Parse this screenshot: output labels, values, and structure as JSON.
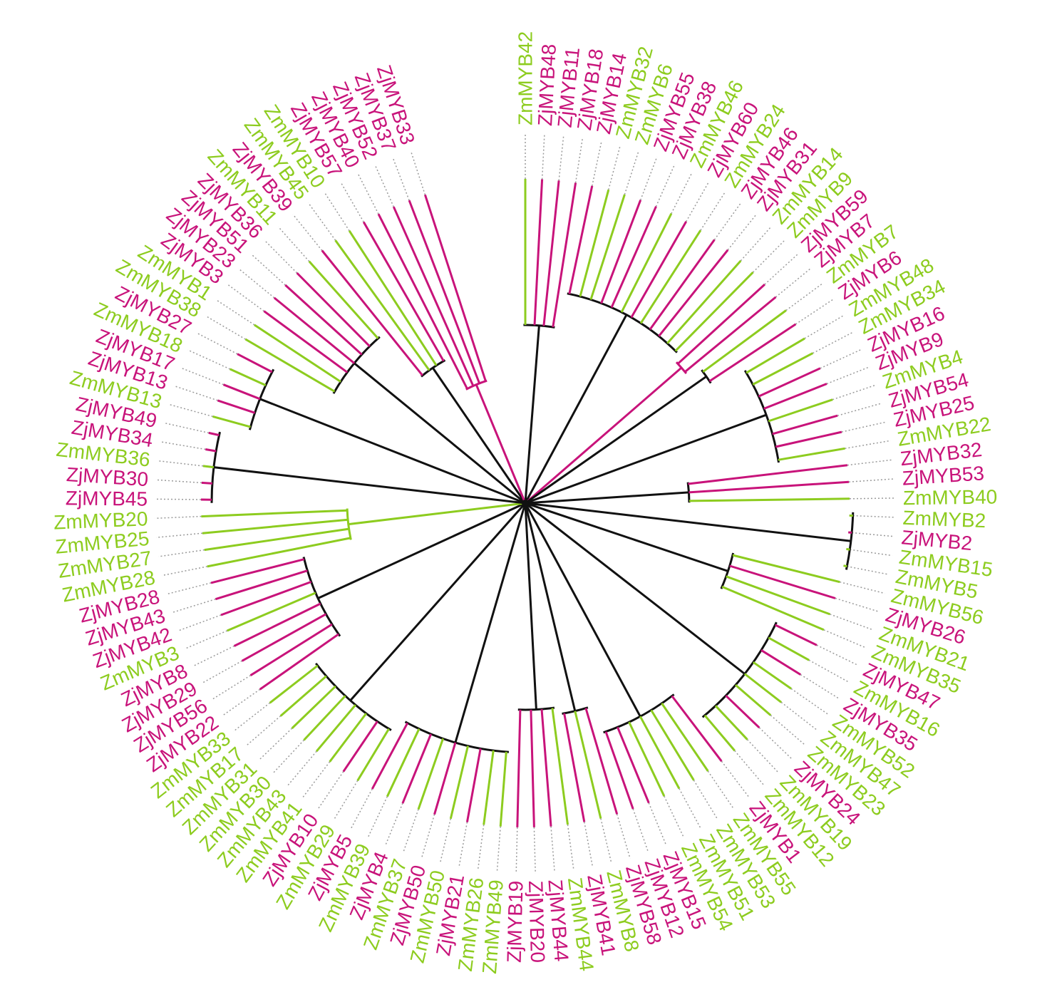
{
  "colors": {
    "zm": "#8dcc1f",
    "zj": "#c8137a",
    "mixed": "#111111",
    "dotted": "#9a9a9a"
  },
  "tree": {
    "layout": "circular",
    "gap_between": [
      "ZmMYB13",
      "ZjMYB49"
    ],
    "leaves_clockwise_from_top": [
      {
        "label": "ZmMYB42",
        "species": "zm",
        "clade": "e"
      },
      {
        "label": "ZjMYB48",
        "species": "zj",
        "clade": "e"
      },
      {
        "label": "ZjMYB11",
        "species": "zj",
        "clade": "e"
      },
      {
        "label": "ZjMYB18",
        "species": "zj",
        "clade": "e"
      },
      {
        "label": "ZjMYB14",
        "species": "zj",
        "clade": "f"
      },
      {
        "label": "ZmMYB32",
        "species": "zm",
        "clade": "f"
      },
      {
        "label": "ZmMYB6",
        "species": "zm",
        "clade": "f"
      },
      {
        "label": "ZjMYB55",
        "species": "zj",
        "clade": "f"
      },
      {
        "label": "ZjMYB38",
        "species": "zj",
        "clade": "f"
      },
      {
        "label": "ZmMYB46",
        "species": "zm",
        "clade": "f"
      },
      {
        "label": "ZjMYB60",
        "species": "zj",
        "clade": "f"
      },
      {
        "label": "ZmMYB24",
        "species": "zm",
        "clade": "f"
      },
      {
        "label": "ZjMYB46",
        "species": "zj",
        "clade": "f"
      },
      {
        "label": "ZjMYB31",
        "species": "zj",
        "clade": "f"
      },
      {
        "label": "ZmMYB14",
        "species": "zm",
        "clade": "f"
      },
      {
        "label": "ZmMYB9",
        "species": "zm",
        "clade": "f"
      },
      {
        "label": "ZjMYB59",
        "species": "zj",
        "clade": "g"
      },
      {
        "label": "ZjMYB7",
        "species": "zj",
        "clade": "g"
      },
      {
        "label": "ZmMYB7",
        "species": "zm",
        "clade": "h"
      },
      {
        "label": "ZjMYB6",
        "species": "zj",
        "clade": "h"
      },
      {
        "label": "ZmMYB48",
        "species": "zm",
        "clade": "i"
      },
      {
        "label": "ZmMYB34",
        "species": "zm",
        "clade": "i"
      },
      {
        "label": "ZjMYB16",
        "species": "zj",
        "clade": "i"
      },
      {
        "label": "ZjMYB9",
        "species": "zj",
        "clade": "i"
      },
      {
        "label": "ZmMYB4",
        "species": "zm",
        "clade": "i"
      },
      {
        "label": "ZjMYB54",
        "species": "zj",
        "clade": "i"
      },
      {
        "label": "ZjMYB25",
        "species": "zj",
        "clade": "i"
      },
      {
        "label": "ZmMYB22",
        "species": "zm",
        "clade": "i"
      },
      {
        "label": "ZjMYB32",
        "species": "zj",
        "clade": "j"
      },
      {
        "label": "ZjMYB53",
        "species": "zj",
        "clade": "j"
      },
      {
        "label": "ZmMYB40",
        "species": "zm",
        "clade": "j"
      },
      {
        "label": "ZmMYB2",
        "species": "zm",
        "clade": "k"
      },
      {
        "label": "ZjMYB2",
        "species": "zj",
        "clade": "k"
      },
      {
        "label": "ZmMYB15",
        "species": "zm",
        "clade": "k"
      },
      {
        "label": "ZmMYB5",
        "species": "zm",
        "clade": "k"
      },
      {
        "label": "ZmMYB56",
        "species": "zm",
        "clade": "l"
      },
      {
        "label": "ZjMYB26",
        "species": "zj",
        "clade": "l"
      },
      {
        "label": "ZmMYB21",
        "species": "zm",
        "clade": "l"
      },
      {
        "label": "ZmMYB35",
        "species": "zm",
        "clade": "l"
      },
      {
        "label": "ZjMYB47",
        "species": "zj",
        "clade": "m"
      },
      {
        "label": "ZmMYB16",
        "species": "zm",
        "clade": "m"
      },
      {
        "label": "ZjMYB35",
        "species": "zj",
        "clade": "m"
      },
      {
        "label": "ZmMYB52",
        "species": "zm",
        "clade": "m"
      },
      {
        "label": "ZmMYB47",
        "species": "zm",
        "clade": "m"
      },
      {
        "label": "ZmMYB23",
        "species": "zm",
        "clade": "m"
      },
      {
        "label": "ZjMYB24",
        "species": "zj",
        "clade": "m"
      },
      {
        "label": "ZmMYB19",
        "species": "zm",
        "clade": "m"
      },
      {
        "label": "ZmMYB12",
        "species": "zm",
        "clade": "m"
      },
      {
        "label": "ZjMYB1",
        "species": "zj",
        "clade": "n"
      },
      {
        "label": "ZmMYB55",
        "species": "zm",
        "clade": "n"
      },
      {
        "label": "ZmMYB53",
        "species": "zm",
        "clade": "n"
      },
      {
        "label": "ZmMYB51",
        "species": "zm",
        "clade": "n"
      },
      {
        "label": "ZmMYB54",
        "species": "zm",
        "clade": "n"
      },
      {
        "label": "ZjMYB15",
        "species": "zj",
        "clade": "n"
      },
      {
        "label": "ZjMYB12",
        "species": "zj",
        "clade": "n"
      },
      {
        "label": "ZjMYB58",
        "species": "zj",
        "clade": "o"
      },
      {
        "label": "ZmMYB8",
        "species": "zm",
        "clade": "o"
      },
      {
        "label": "ZjMYB41",
        "species": "zj",
        "clade": "o"
      },
      {
        "label": "ZmMYB44",
        "species": "zm",
        "clade": "p"
      },
      {
        "label": "ZjMYB44",
        "species": "zj",
        "clade": "p"
      },
      {
        "label": "ZjMYB20",
        "species": "zj",
        "clade": "p"
      },
      {
        "label": "ZjMYB19",
        "species": "zj",
        "clade": "p"
      },
      {
        "label": "ZmMYB49",
        "species": "zm",
        "clade": "q"
      },
      {
        "label": "ZmMYB26",
        "species": "zm",
        "clade": "q"
      },
      {
        "label": "ZjMYB21",
        "species": "zj",
        "clade": "q"
      },
      {
        "label": "ZmMYB50",
        "species": "zm",
        "clade": "q"
      },
      {
        "label": "ZjMYB50",
        "species": "zj",
        "clade": "q"
      },
      {
        "label": "ZmMYB37",
        "species": "zm",
        "clade": "q"
      },
      {
        "label": "ZjMYB4",
        "species": "zj",
        "clade": "q"
      },
      {
        "label": "ZmMYB39",
        "species": "zm",
        "clade": "q"
      },
      {
        "label": "ZjMYB5",
        "species": "zj",
        "clade": "q"
      },
      {
        "label": "ZmMYB29",
        "species": "zm",
        "clade": "r"
      },
      {
        "label": "ZjMYB10",
        "species": "zj",
        "clade": "r"
      },
      {
        "label": "ZmMYB41",
        "species": "zm",
        "clade": "r"
      },
      {
        "label": "ZmMYB43",
        "species": "zm",
        "clade": "r"
      },
      {
        "label": "ZmMYB30",
        "species": "zm",
        "clade": "r"
      },
      {
        "label": "ZmMYB31",
        "species": "zm",
        "clade": "r"
      },
      {
        "label": "ZmMYB17",
        "species": "zm",
        "clade": "r"
      },
      {
        "label": "ZmMYB33",
        "species": "zm",
        "clade": "r"
      },
      {
        "label": "ZjMYB22",
        "species": "zj",
        "clade": "s"
      },
      {
        "label": "ZjMYB56",
        "species": "zj",
        "clade": "s"
      },
      {
        "label": "ZjMYB29",
        "species": "zj",
        "clade": "s"
      },
      {
        "label": "ZjMYB8",
        "species": "zj",
        "clade": "s"
      },
      {
        "label": "ZmMYB3",
        "species": "zm",
        "clade": "s"
      },
      {
        "label": "ZjMYB42",
        "species": "zj",
        "clade": "s"
      },
      {
        "label": "ZjMYB43",
        "species": "zj",
        "clade": "s"
      },
      {
        "label": "ZjMYB28",
        "species": "zj",
        "clade": "s"
      },
      {
        "label": "ZmMYB28",
        "species": "zm",
        "clade": "t"
      },
      {
        "label": "ZmMYB27",
        "species": "zm",
        "clade": "t"
      },
      {
        "label": "ZmMYB25",
        "species": "zm",
        "clade": "t"
      },
      {
        "label": "ZmMYB20",
        "species": "zm",
        "clade": "t"
      },
      {
        "label": "ZjMYB45",
        "species": "zj",
        "clade": "u"
      },
      {
        "label": "ZjMYB30",
        "species": "zj",
        "clade": "u"
      },
      {
        "label": "ZmMYB36",
        "species": "zm",
        "clade": "u"
      },
      {
        "label": "ZjMYB34",
        "species": "zj",
        "clade": "u"
      },
      {
        "label": "ZjMYB49",
        "species": "zj",
        "clade": "u"
      },
      {
        "label": "ZmMYB13",
        "species": "zm",
        "clade": "a"
      },
      {
        "label": "ZjMYB13",
        "species": "zj",
        "clade": "a"
      },
      {
        "label": "ZjMYB17",
        "species": "zj",
        "clade": "a"
      },
      {
        "label": "ZmMYB18",
        "species": "zm",
        "clade": "a"
      },
      {
        "label": "ZjMYB27",
        "species": "zj",
        "clade": "a"
      },
      {
        "label": "ZmMYB38",
        "species": "zm",
        "clade": "b"
      },
      {
        "label": "ZmMYB1",
        "species": "zm",
        "clade": "b"
      },
      {
        "label": "ZjMYB3",
        "species": "zj",
        "clade": "b"
      },
      {
        "label": "ZjMYB23",
        "species": "zj",
        "clade": "b"
      },
      {
        "label": "ZjMYB51",
        "species": "zj",
        "clade": "b"
      },
      {
        "label": "ZjMYB36",
        "species": "zj",
        "clade": "b"
      },
      {
        "label": "ZmMYB11",
        "species": "zm",
        "clade": "b"
      },
      {
        "label": "ZjMYB39",
        "species": "zj",
        "clade": "c"
      },
      {
        "label": "ZmMYB45",
        "species": "zm",
        "clade": "c"
      },
      {
        "label": "ZmMYB10",
        "species": "zm",
        "clade": "c"
      },
      {
        "label": "ZjMYB57",
        "species": "zj",
        "clade": "c"
      },
      {
        "label": "ZjMYB40",
        "species": "zj",
        "clade": "d"
      },
      {
        "label": "ZjMYB52",
        "species": "zj",
        "clade": "d"
      },
      {
        "label": "ZjMYB37",
        "species": "zj",
        "clade": "d"
      },
      {
        "label": "ZjMYB33",
        "species": "zj",
        "clade": "d"
      }
    ]
  }
}
